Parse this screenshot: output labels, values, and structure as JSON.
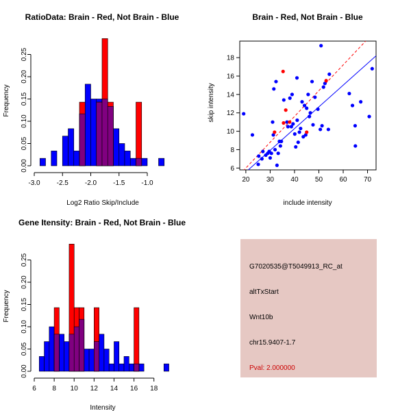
{
  "colors": {
    "red": "#ff0000",
    "blue": "#0000ff",
    "overlap": "#800080",
    "info_bg": "#e6c8c3",
    "pval": "#cc0000"
  },
  "chart_data": [
    {
      "type": "histogram",
      "title": "RatioData: Brain - Red, Not Brain - Blue",
      "xlabel": "Log2 Ratio Skip/Include",
      "ylabel": "Frequency",
      "xlim": [
        -3.0,
        -0.6
      ],
      "ylim": [
        0,
        0.28
      ],
      "xticks": [
        -3.0,
        -2.5,
        -2.0,
        -1.5,
        -1.0
      ],
      "xtick_labels": [
        "-3.0",
        "-2.5",
        "-2.0",
        "-1.5",
        "-1.0"
      ],
      "yticks": [
        0.0,
        0.05,
        0.1,
        0.15,
        0.2,
        0.25
      ],
      "ytick_labels": [
        "0.00",
        "0.05",
        "0.10",
        "0.15",
        "0.20",
        "0.25"
      ],
      "bin_width": 0.1,
      "series": [
        {
          "name": "Not Brain",
          "color": "blue",
          "bins": [
            [
              -2.9,
              0.0167
            ],
            [
              -2.7,
              0.0333
            ],
            [
              -2.5,
              0.0667
            ],
            [
              -2.4,
              0.0833
            ],
            [
              -2.3,
              0.0333
            ],
            [
              -2.2,
              0.1167
            ],
            [
              -2.1,
              0.1833
            ],
            [
              -2.0,
              0.15
            ],
            [
              -1.9,
              0.15
            ],
            [
              -1.8,
              0.15
            ],
            [
              -1.7,
              0.1333
            ],
            [
              -1.6,
              0.0833
            ],
            [
              -1.5,
              0.05
            ],
            [
              -1.4,
              0.0333
            ],
            [
              -1.3,
              0.0167
            ],
            [
              -1.2,
              0.0167
            ],
            [
              -1.1,
              0.0167
            ],
            [
              -0.8,
              0.0167
            ]
          ]
        },
        {
          "name": "Brain",
          "color": "red",
          "bins": [
            [
              -2.2,
              0.1429
            ],
            [
              -1.9,
              0.1429
            ],
            [
              -1.8,
              0.2857
            ],
            [
              -1.7,
              0.1429
            ],
            [
              -1.2,
              0.1429
            ]
          ]
        }
      ]
    },
    {
      "type": "scatter",
      "title": "Brain - Red, Not Brain - Blue",
      "xlabel": "include intensity",
      "ylabel": "skip intensity",
      "xlim": [
        17.5,
        73.5
      ],
      "ylim": [
        5.8,
        19.8
      ],
      "xticks": [
        20,
        30,
        40,
        50,
        60,
        70
      ],
      "xtick_labels": [
        "20",
        "30",
        "40",
        "50",
        "60",
        "70"
      ],
      "yticks": [
        6,
        8,
        10,
        12,
        14,
        16,
        18
      ],
      "ytick_labels": [
        "6",
        "8",
        "10",
        "12",
        "14",
        "16",
        "18"
      ],
      "series": [
        {
          "name": "Not Brain",
          "color": "blue",
          "points": [
            [
              19.1,
              11.9
            ],
            [
              22.7,
              9.6
            ],
            [
              25.1,
              6.4
            ],
            [
              25.3,
              7.3
            ],
            [
              26.6,
              7.0
            ],
            [
              27.0,
              7.8
            ],
            [
              28.2,
              7.4
            ],
            [
              29.0,
              7.6
            ],
            [
              29.6,
              7.8
            ],
            [
              30.0,
              7.1
            ],
            [
              30.5,
              7.6
            ],
            [
              31.0,
              11.0
            ],
            [
              31.3,
              9.6
            ],
            [
              31.5,
              14.6
            ],
            [
              32.0,
              8.0
            ],
            [
              32.4,
              15.4
            ],
            [
              32.8,
              6.3
            ],
            [
              33.3,
              7.6
            ],
            [
              33.8,
              8.9
            ],
            [
              34.2,
              8.4
            ],
            [
              34.6,
              8.9
            ],
            [
              35.6,
              13.4
            ],
            [
              36.9,
              11.0
            ],
            [
              37.3,
              10.5
            ],
            [
              38.1,
              13.6
            ],
            [
              38.7,
              10.5
            ],
            [
              39.0,
              14.0
            ],
            [
              39.4,
              10.8
            ],
            [
              40.1,
              9.7
            ],
            [
              40.5,
              8.3
            ],
            [
              41.0,
              15.8
            ],
            [
              41.1,
              11.2
            ],
            [
              41.5,
              8.8
            ],
            [
              42.0,
              9.9
            ],
            [
              42.5,
              10.3
            ],
            [
              43.1,
              13.2
            ],
            [
              43.6,
              9.4
            ],
            [
              44.1,
              12.8
            ],
            [
              44.6,
              9.6
            ],
            [
              45.0,
              12.5
            ],
            [
              45.6,
              14.0
            ],
            [
              46.1,
              11.6
            ],
            [
              46.5,
              12.0
            ],
            [
              47.2,
              15.4
            ],
            [
              47.6,
              10.7
            ],
            [
              48.4,
              13.7
            ],
            [
              49.6,
              12.4
            ],
            [
              50.6,
              10.2
            ],
            [
              50.9,
              19.3
            ],
            [
              51.3,
              10.6
            ],
            [
              51.9,
              14.8
            ],
            [
              52.5,
              15.2
            ],
            [
              53.9,
              10.2
            ],
            [
              54.3,
              16.2
            ],
            [
              62.5,
              14.1
            ],
            [
              63.8,
              12.8
            ],
            [
              64.9,
              10.6
            ],
            [
              65.0,
              8.4
            ],
            [
              67.2,
              13.2
            ],
            [
              70.7,
              11.6
            ],
            [
              71.9,
              16.8
            ]
          ]
        },
        {
          "name": "Brain",
          "color": "red",
          "points": [
            [
              31.8,
              9.9
            ],
            [
              35.3,
              16.5
            ],
            [
              35.5,
              10.9
            ],
            [
              36.4,
              12.3
            ],
            [
              38.0,
              11.0
            ],
            [
              45.0,
              9.9
            ],
            [
              53.0,
              15.5
            ]
          ]
        }
      ],
      "fit_lines": [
        {
          "name": "Not Brain fit",
          "color": "blue",
          "style": "solid",
          "x": [
            19.1,
            73.5
          ],
          "y": [
            5.35,
            18.2
          ]
        },
        {
          "name": "Brain fit",
          "color": "red",
          "style": "dashed",
          "x": [
            17.5,
            73.5
          ],
          "y": [
            5.3,
            21.0
          ]
        }
      ]
    },
    {
      "type": "histogram",
      "title": "Gene Itensity: Brain - Red, Not Brain - Blue",
      "xlabel": "Intensity",
      "ylabel": "Frequency",
      "xlim": [
        6.0,
        19.6
      ],
      "ylim": [
        0,
        0.28
      ],
      "xticks": [
        6,
        8,
        10,
        12,
        14,
        16,
        18
      ],
      "xtick_labels": [
        "6",
        "8",
        "10",
        "12",
        "14",
        "16",
        "18"
      ],
      "yticks": [
        0.0,
        0.05,
        0.1,
        0.15,
        0.2,
        0.25
      ],
      "ytick_labels": [
        "0.00",
        "0.05",
        "0.10",
        "0.15",
        "0.20",
        "0.25"
      ],
      "bin_width": 0.5,
      "series": [
        {
          "name": "Not Brain",
          "color": "blue",
          "bins": [
            [
              6.5,
              0.0333
            ],
            [
              7.0,
              0.0667
            ],
            [
              7.5,
              0.1
            ],
            [
              8.0,
              0.0833
            ],
            [
              8.5,
              0.0833
            ],
            [
              9.0,
              0.0667
            ],
            [
              9.5,
              0.0833
            ],
            [
              10.0,
              0.1
            ],
            [
              10.5,
              0.1167
            ],
            [
              11.0,
              0.05
            ],
            [
              11.5,
              0.05
            ],
            [
              12.0,
              0.0667
            ],
            [
              12.5,
              0.0833
            ],
            [
              13.0,
              0.05
            ],
            [
              13.5,
              0.0167
            ],
            [
              14.0,
              0.0667
            ],
            [
              14.5,
              0.0167
            ],
            [
              15.0,
              0.0333
            ],
            [
              15.5,
              0.0167
            ],
            [
              16.0,
              0.0167
            ],
            [
              16.5,
              0.0167
            ],
            [
              19.0,
              0.0167
            ]
          ]
        },
        {
          "name": "Brain",
          "color": "red",
          "bins": [
            [
              8.0,
              0.1429
            ],
            [
              9.5,
              0.2857
            ],
            [
              10.0,
              0.1429
            ],
            [
              10.5,
              0.1429
            ],
            [
              12.0,
              0.1429
            ],
            [
              16.0,
              0.1429
            ]
          ]
        }
      ]
    }
  ],
  "info_panel": {
    "probe_id": "G7020535@T5049913_RC_at",
    "event_type": "altTxStart",
    "gene": "Wnt10b",
    "location": "chr15.9407-1.7",
    "pval": "Pval: 2.000000"
  }
}
